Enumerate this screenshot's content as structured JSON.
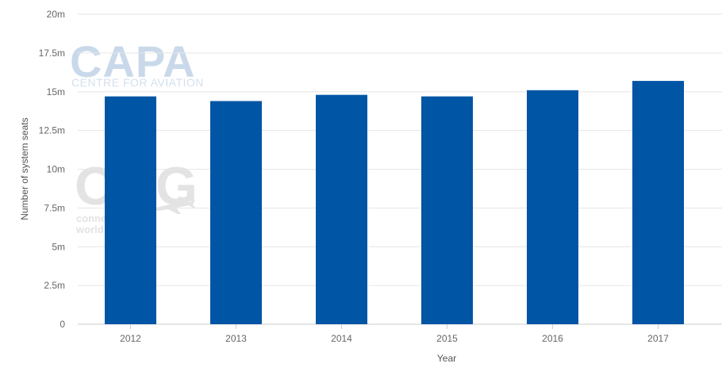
{
  "chart_data": {
    "type": "bar",
    "categories": [
      "2012",
      "2013",
      "2014",
      "2015",
      "2016",
      "2017"
    ],
    "values": [
      14.7,
      14.4,
      14.8,
      14.7,
      15.1,
      15.7
    ],
    "value_unit": "m",
    "title": "",
    "xlabel": "Year",
    "ylabel": "Number of system seats",
    "ylim": [
      0,
      20
    ],
    "yticks": [
      "0",
      "2.5m",
      "5m",
      "7.5m",
      "10m",
      "12.5m",
      "15m",
      "17.5m",
      "20m"
    ],
    "grid": true,
    "legend": "none",
    "bar_color": "#0055a5",
    "grid_color": "#e6e6e6"
  },
  "watermark": {
    "logo_text": "CAPA",
    "logo_subtitle": "CENTRE FOR AVIATION",
    "secondary_mark": "OAG",
    "secondary_lines": [
      "connecting the",
      "world of travel"
    ],
    "logo_color": "#c9d9ea",
    "secondary_color": "#e3e3e3"
  }
}
